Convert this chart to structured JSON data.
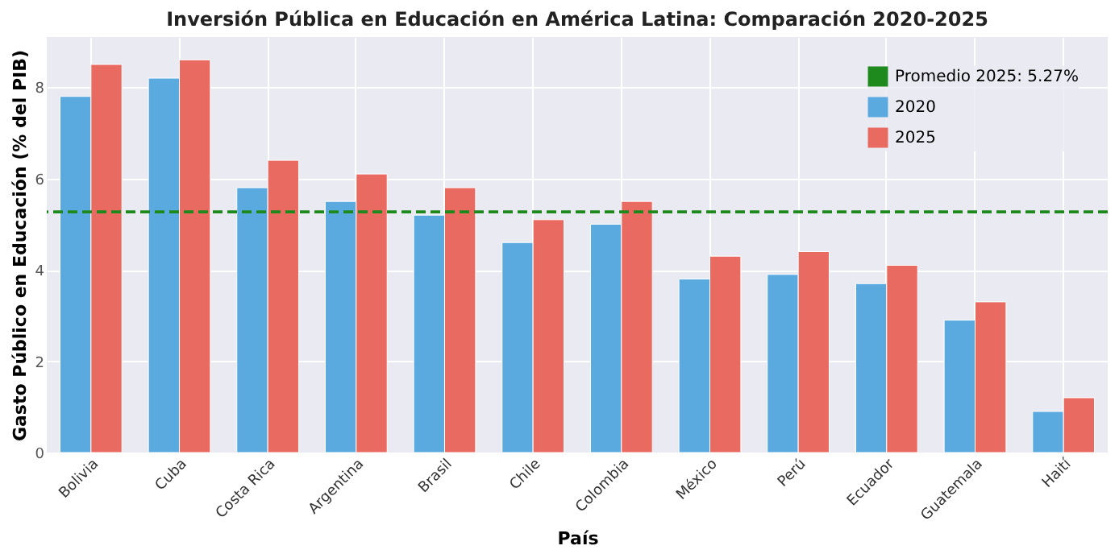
{
  "chart_data": {
    "type": "bar",
    "title": "Inversión Pública en Educación en América Latina: Comparación 2020-2025",
    "xlabel": "País",
    "ylabel": "Gasto Público en Educación (% del PIB)",
    "categories": [
      "Bolivia",
      "Cuba",
      "Costa Rica",
      "Argentina",
      "Brasil",
      "Chile",
      "Colombia",
      "México",
      "Perú",
      "Ecuador",
      "Guatemala",
      "Haití"
    ],
    "series": [
      {
        "name": "2020",
        "color": "#5aa9df",
        "values": [
          7.8,
          8.2,
          5.8,
          5.5,
          5.2,
          4.6,
          5.0,
          3.8,
          3.9,
          3.7,
          2.9,
          0.9
        ]
      },
      {
        "name": "2025",
        "color": "#e86a60",
        "values": [
          8.5,
          8.6,
          6.4,
          6.1,
          5.8,
          5.1,
          5.5,
          4.3,
          4.4,
          4.1,
          3.3,
          1.2
        ]
      }
    ],
    "ylim": [
      0,
      9.1
    ],
    "yticks": [
      0,
      2,
      4,
      6,
      8
    ],
    "ref_lines": [
      {
        "axis": "y",
        "value": 5.27,
        "label": "Promedio 2025: 5.27%",
        "color": "#1e8a1e",
        "line_style": "dashed"
      }
    ],
    "grid": true,
    "legend": "top right"
  }
}
